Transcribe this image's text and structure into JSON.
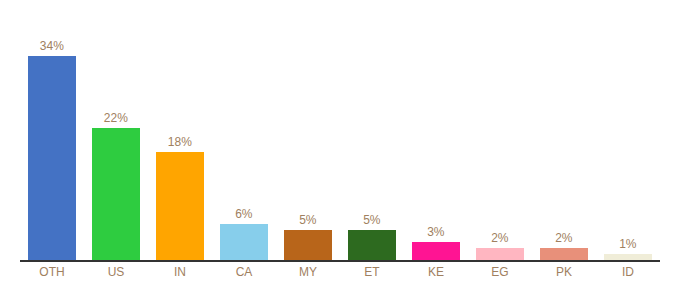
{
  "chart_data": {
    "type": "bar",
    "categories": [
      "OTH",
      "US",
      "IN",
      "CA",
      "MY",
      "ET",
      "KE",
      "EG",
      "PK",
      "ID"
    ],
    "values": [
      34,
      22,
      18,
      6,
      5,
      5,
      3,
      2,
      2,
      1
    ],
    "value_labels": [
      "34%",
      "22%",
      "18%",
      "6%",
      "5%",
      "5%",
      "3%",
      "2%",
      "2%",
      "1%"
    ],
    "colors": [
      "#4472C4",
      "#2ECC40",
      "#FFA500",
      "#87CEEB",
      "#B8651A",
      "#2D6A1F",
      "#FF1493",
      "#FFB6C1",
      "#E8907A",
      "#F0EDD8"
    ],
    "ylim": [
      0,
      40
    ],
    "data_labels": true,
    "grid": false,
    "tick_labels": "x"
  }
}
